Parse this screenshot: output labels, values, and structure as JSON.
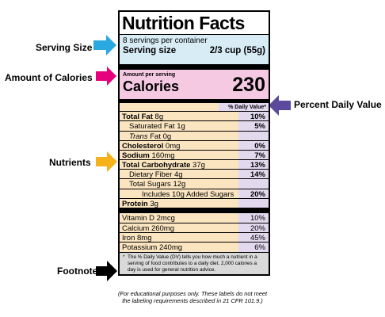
{
  "annotations": {
    "serving_size": "Serving Size",
    "calories": "Amount of Calories",
    "percent_dv": "Percent Daily Value",
    "nutrients": "Nutrients",
    "footnote": "Footnote"
  },
  "label": {
    "title": "Nutrition Facts",
    "servings_per_container": "8 servings per container",
    "serving_size_label": "Serving size",
    "serving_size_value": "2/3 cup (55g)",
    "amount_per_serving": "Amount per serving",
    "calories_label": "Calories",
    "calories_value": "230",
    "dv_header": "% Daily Value*",
    "nutrients": [
      {
        "name": "Total Fat",
        "amount": "8g",
        "dv": "10%"
      },
      {
        "name": "Saturated Fat",
        "amount": "1g",
        "dv": "5%"
      },
      {
        "name": "Trans",
        "amount": "Fat 0g",
        "dv": ""
      },
      {
        "name": "Cholesterol",
        "amount": "0mg",
        "dv": "0%"
      },
      {
        "name": "Sodium",
        "amount": "160mg",
        "dv": "7%"
      },
      {
        "name": "Total Carbohydrate",
        "amount": "37g",
        "dv": "13%"
      },
      {
        "name": "Dietary Fiber",
        "amount": "4g",
        "dv": "14%"
      },
      {
        "name": "Total Sugars",
        "amount": "12g",
        "dv": ""
      },
      {
        "name": "Includes 10g Added Sugars",
        "amount": "",
        "dv": "20%"
      },
      {
        "name": "Protein",
        "amount": "3g",
        "dv": ""
      }
    ],
    "vitamins": [
      {
        "name": "Vitamin D 2mcg",
        "dv": "10%"
      },
      {
        "name": "Calcium 260mg",
        "dv": "20%"
      },
      {
        "name": "Iron 8mg",
        "dv": "45%"
      },
      {
        "name": "Potassium 240mg",
        "dv": "6%"
      }
    ],
    "footnote_star": "*",
    "footnote": "The % Daily Value (DV) tells you how much a nutrient in a serving of food contributes to a daily diet. 2,000 calories a day is used for general nutrition advice."
  },
  "disclaimer_line1": "(For educational purposes only. These labels do not meet",
  "disclaimer_line2": "the labeling requirements described in 21 CFR 101.9.)",
  "colors": {
    "serving": "#d8ecf6",
    "calories": "#f4c9e1",
    "nutrients": "#fbe5c1",
    "dv_column": "#e2d9ef",
    "footnote": "#d9d9d9",
    "arrow_blue": "#29a9e0",
    "arrow_magenta": "#e6007e",
    "arrow_purple": "#5b4a9b",
    "arrow_orange": "#f5b21b",
    "arrow_black": "#000000"
  }
}
